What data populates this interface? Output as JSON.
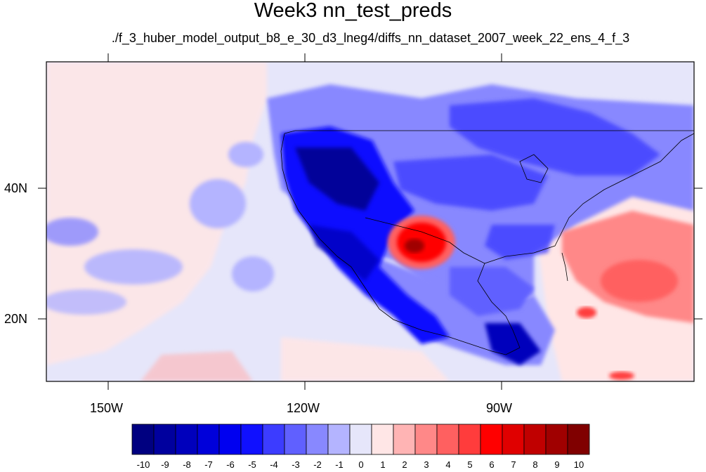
{
  "title": "Week3 nn_test_preds",
  "subtitle": "./f_3_huber_model_output_b8_e_30_d3_lneg4/diffs_nn_dataset_2007_week_22_ens_4_f_3",
  "axes": {
    "lat_labels": [
      "40N",
      "20N"
    ],
    "lon_labels": [
      "150W",
      "120W",
      "90W"
    ]
  },
  "colorbar": {
    "labels": [
      "-10",
      "-9",
      "-8",
      "-7",
      "-6",
      "-5",
      "-4",
      "-3",
      "-2",
      "-1",
      "0",
      "1",
      "2",
      "3",
      "4",
      "5",
      "6",
      "7",
      "8",
      "9",
      "10"
    ],
    "colors": [
      "#000080",
      "#00009e",
      "#0000bc",
      "#0000da",
      "#0000f0",
      "#1010ff",
      "#3c3cff",
      "#6060ff",
      "#8888ff",
      "#b4b4ff",
      "#e6e6fa",
      "#ffe6e6",
      "#ffb4b4",
      "#ff8888",
      "#ff6060",
      "#ff3c3c",
      "#ff0000",
      "#e00000",
      "#c00000",
      "#a00000",
      "#800000"
    ]
  },
  "map": {
    "region": "North America and eastern Pacific",
    "lon_range": [
      -160,
      -60
    ],
    "lat_range": [
      10,
      58
    ],
    "shading": "filled contours"
  }
}
